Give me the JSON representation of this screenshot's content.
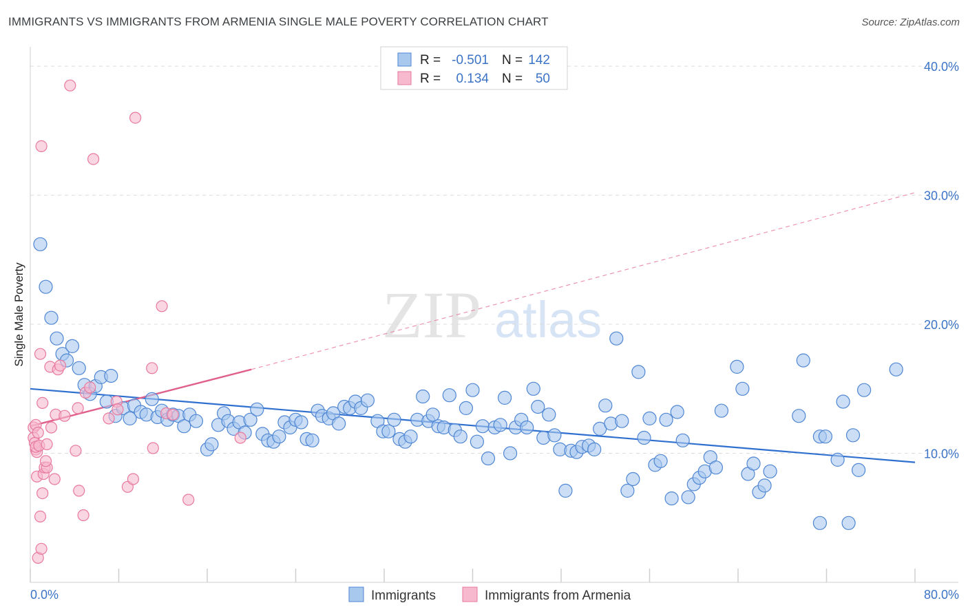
{
  "title": "IMMIGRANTS VS IMMIGRANTS FROM ARMENIA SINGLE MALE POVERTY CORRELATION CHART",
  "source": "Source: ZipAtlas.com",
  "watermark": {
    "zip": "ZIP",
    "atlas": "atlas"
  },
  "colors": {
    "blue_fill": "#a9c8ee",
    "blue_stroke": "#4f86d4",
    "blue_line": "#2f6fcf",
    "pink_fill": "#f6b9ce",
    "pink_stroke": "#e7799d",
    "pink_line": "#e0608c",
    "tick_text": "#3b73c6",
    "grid": "#dcdcdc"
  },
  "legend_box": {
    "rows": [
      {
        "r_label": "R =",
        "r_value": "-0.501",
        "n_label": "N =",
        "n_value": "142"
      },
      {
        "r_label": "R =",
        "r_value": "0.134",
        "n_label": "N =",
        "n_value": "50"
      }
    ]
  },
  "chart_data": {
    "type": "scatter",
    "xlabel": "",
    "ylabel": "Single Male Poverty",
    "xlim": [
      0,
      80
    ],
    "ylim": [
      0,
      41.5
    ],
    "x_tick_labels": [
      "0.0%",
      "80.0%"
    ],
    "y_ticks": [
      10,
      20,
      30,
      40
    ],
    "y_tick_labels": [
      "10.0%",
      "20.0%",
      "30.0%",
      "40.0%"
    ],
    "grid": "horizontal-dashed",
    "legend_position": "bottom-center",
    "series": [
      {
        "name": "Immigrants",
        "r": -0.501,
        "n": 142,
        "trend": {
          "x": [
            0,
            80
          ],
          "y": [
            15.0,
            9.3
          ],
          "style": "solid"
        },
        "points": [
          [
            0.9,
            26.2
          ],
          [
            1.4,
            22.9
          ],
          [
            1.9,
            20.5
          ],
          [
            2.4,
            18.9
          ],
          [
            2.9,
            17.7
          ],
          [
            3.8,
            18.3
          ],
          [
            3.3,
            17.2
          ],
          [
            4.4,
            16.6
          ],
          [
            4.9,
            15.3
          ],
          [
            5.4,
            14.6
          ],
          [
            5.9,
            15.2
          ],
          [
            6.4,
            15.9
          ],
          [
            7.3,
            16.0
          ],
          [
            6.9,
            14.0
          ],
          [
            7.7,
            12.9
          ],
          [
            8.4,
            13.5
          ],
          [
            9.0,
            12.7
          ],
          [
            9.4,
            13.7
          ],
          [
            10.0,
            13.2
          ],
          [
            10.5,
            13.0
          ],
          [
            11.0,
            14.2
          ],
          [
            11.5,
            12.8
          ],
          [
            11.9,
            13.3
          ],
          [
            12.4,
            12.6
          ],
          [
            12.9,
            13.0
          ],
          [
            13.4,
            12.9
          ],
          [
            13.9,
            12.1
          ],
          [
            14.4,
            13.0
          ],
          [
            15.0,
            12.5
          ],
          [
            16.0,
            10.3
          ],
          [
            16.4,
            10.7
          ],
          [
            17.0,
            12.2
          ],
          [
            17.5,
            13.1
          ],
          [
            17.9,
            12.5
          ],
          [
            18.4,
            11.9
          ],
          [
            18.9,
            12.4
          ],
          [
            19.4,
            11.6
          ],
          [
            19.9,
            12.6
          ],
          [
            20.5,
            13.4
          ],
          [
            21.0,
            11.5
          ],
          [
            21.5,
            11.0
          ],
          [
            22.0,
            10.9
          ],
          [
            22.5,
            11.3
          ],
          [
            23.0,
            12.4
          ],
          [
            23.5,
            12.0
          ],
          [
            24.0,
            12.6
          ],
          [
            24.5,
            12.4
          ],
          [
            25.0,
            11.1
          ],
          [
            25.5,
            11.0
          ],
          [
            26.0,
            13.3
          ],
          [
            26.4,
            12.9
          ],
          [
            27.0,
            12.7
          ],
          [
            27.4,
            13.1
          ],
          [
            27.9,
            12.3
          ],
          [
            28.4,
            13.6
          ],
          [
            28.9,
            13.5
          ],
          [
            29.4,
            14.0
          ],
          [
            29.9,
            13.5
          ],
          [
            30.5,
            14.1
          ],
          [
            31.4,
            12.5
          ],
          [
            31.9,
            11.7
          ],
          [
            32.4,
            11.7
          ],
          [
            32.9,
            12.6
          ],
          [
            33.4,
            11.1
          ],
          [
            33.9,
            10.9
          ],
          [
            34.4,
            11.3
          ],
          [
            35.0,
            12.6
          ],
          [
            35.5,
            14.4
          ],
          [
            36.0,
            12.5
          ],
          [
            36.4,
            13.0
          ],
          [
            36.9,
            12.1
          ],
          [
            37.4,
            12.0
          ],
          [
            37.9,
            14.5
          ],
          [
            38.4,
            11.8
          ],
          [
            38.9,
            11.3
          ],
          [
            39.4,
            13.5
          ],
          [
            40.0,
            14.9
          ],
          [
            40.4,
            10.9
          ],
          [
            40.9,
            12.1
          ],
          [
            41.4,
            9.6
          ],
          [
            42.0,
            12.0
          ],
          [
            42.5,
            12.2
          ],
          [
            42.9,
            14.3
          ],
          [
            43.4,
            10.0
          ],
          [
            43.9,
            12.0
          ],
          [
            44.4,
            12.6
          ],
          [
            44.9,
            12.0
          ],
          [
            45.5,
            15.0
          ],
          [
            45.9,
            13.6
          ],
          [
            46.4,
            11.2
          ],
          [
            46.9,
            13.0
          ],
          [
            47.4,
            11.4
          ],
          [
            47.9,
            10.3
          ],
          [
            48.4,
            7.1
          ],
          [
            48.9,
            10.2
          ],
          [
            49.4,
            10.1
          ],
          [
            49.9,
            10.5
          ],
          [
            50.5,
            10.6
          ],
          [
            51.0,
            10.3
          ],
          [
            51.5,
            11.9
          ],
          [
            52.0,
            13.7
          ],
          [
            52.5,
            12.3
          ],
          [
            53.0,
            18.9
          ],
          [
            53.5,
            12.5
          ],
          [
            54.0,
            7.1
          ],
          [
            54.5,
            8.0
          ],
          [
            55.0,
            16.3
          ],
          [
            55.5,
            11.2
          ],
          [
            56.0,
            12.7
          ],
          [
            56.5,
            9.1
          ],
          [
            57.0,
            9.4
          ],
          [
            57.5,
            12.6
          ],
          [
            58.0,
            6.5
          ],
          [
            58.5,
            13.2
          ],
          [
            59.0,
            11.0
          ],
          [
            59.5,
            6.6
          ],
          [
            60.0,
            7.6
          ],
          [
            60.5,
            8.1
          ],
          [
            61.0,
            8.6
          ],
          [
            61.5,
            9.7
          ],
          [
            62.0,
            8.9
          ],
          [
            62.5,
            13.3
          ],
          [
            63.9,
            16.7
          ],
          [
            64.4,
            15.0
          ],
          [
            64.9,
            8.4
          ],
          [
            65.4,
            9.2
          ],
          [
            65.9,
            7.0
          ],
          [
            66.4,
            7.5
          ],
          [
            66.9,
            8.6
          ],
          [
            69.9,
            17.2
          ],
          [
            69.5,
            12.9
          ],
          [
            71.4,
            11.3
          ],
          [
            71.9,
            11.3
          ],
          [
            71.4,
            4.6
          ],
          [
            73.0,
            9.5
          ],
          [
            73.5,
            14.0
          ],
          [
            74.0,
            4.6
          ],
          [
            74.4,
            11.4
          ],
          [
            74.9,
            8.7
          ],
          [
            75.4,
            14.9
          ],
          [
            78.3,
            16.5
          ]
        ]
      },
      {
        "name": "Immigrants from Armenia",
        "r": 0.134,
        "n": 50,
        "trend": {
          "x": [
            0,
            20
          ],
          "y": [
            12.1,
            16.5
          ],
          "style": "solid",
          "extended": {
            "x": [
              20,
              80
            ],
            "y": [
              16.5,
              30.2
            ],
            "style": "dashed"
          }
        },
        "points": [
          [
            0.3,
            12.0
          ],
          [
            0.3,
            11.2
          ],
          [
            0.5,
            10.3
          ],
          [
            0.6,
            10.1
          ],
          [
            0.4,
            10.8
          ],
          [
            0.5,
            10.5
          ],
          [
            0.5,
            12.2
          ],
          [
            0.7,
            11.6
          ],
          [
            0.8,
            10.6
          ],
          [
            0.6,
            8.2
          ],
          [
            0.7,
            1.9
          ],
          [
            1.0,
            2.6
          ],
          [
            0.9,
            5.1
          ],
          [
            1.1,
            6.9
          ],
          [
            1.2,
            8.4
          ],
          [
            1.3,
            8.9
          ],
          [
            1.5,
            8.9
          ],
          [
            1.4,
            9.4
          ],
          [
            1.5,
            10.7
          ],
          [
            1.1,
            13.9
          ],
          [
            0.9,
            17.7
          ],
          [
            1.0,
            33.8
          ],
          [
            1.9,
            12.0
          ],
          [
            1.8,
            16.7
          ],
          [
            2.2,
            8.0
          ],
          [
            2.3,
            13.0
          ],
          [
            2.5,
            16.5
          ],
          [
            2.7,
            16.8
          ],
          [
            3.1,
            12.9
          ],
          [
            4.1,
            10.2
          ],
          [
            4.3,
            13.5
          ],
          [
            4.4,
            7.1
          ],
          [
            4.8,
            5.2
          ],
          [
            5.0,
            14.7
          ],
          [
            5.4,
            15.1
          ],
          [
            3.6,
            38.5
          ],
          [
            5.7,
            32.8
          ],
          [
            7.1,
            12.7
          ],
          [
            7.8,
            14.0
          ],
          [
            7.9,
            13.4
          ],
          [
            8.8,
            7.4
          ],
          [
            9.3,
            8.0
          ],
          [
            9.5,
            36.0
          ],
          [
            11.0,
            16.6
          ],
          [
            11.1,
            10.4
          ],
          [
            11.9,
            21.4
          ],
          [
            12.3,
            13.1
          ],
          [
            12.9,
            13.0
          ],
          [
            14.3,
            6.4
          ],
          [
            19.0,
            11.2
          ]
        ]
      }
    ]
  },
  "bottom_legend": [
    {
      "label": "Immigrants"
    },
    {
      "label": "Immigrants from Armenia"
    }
  ]
}
